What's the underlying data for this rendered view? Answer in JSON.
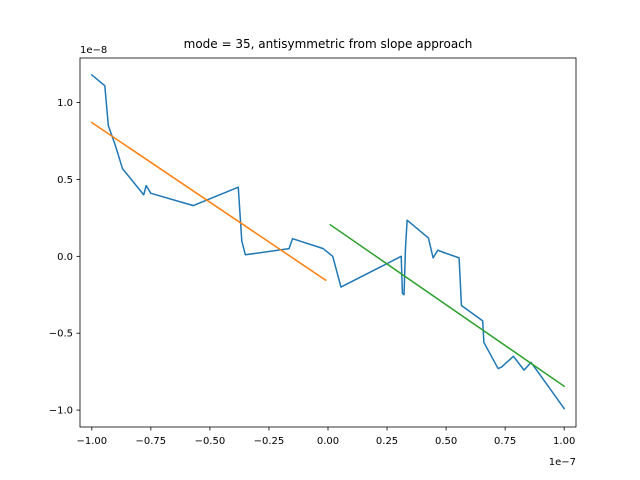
{
  "chart_data": {
    "type": "line",
    "title": "mode = 35, antisymmetric from slope approach",
    "x_offset_label": "1e−7",
    "y_offset_label": "1e−8",
    "xlim": [
      -1.05,
      1.05
    ],
    "ylim": [
      -1.11,
      1.29
    ],
    "x_ticks": [
      -1.0,
      -0.75,
      -0.5,
      -0.25,
      0.0,
      0.25,
      0.5,
      0.75,
      1.0
    ],
    "x_tick_labels": [
      "−1.00",
      "−0.75",
      "−0.50",
      "−0.25",
      "0.00",
      "0.25",
      "0.50",
      "0.75",
      "1.00"
    ],
    "y_ticks": [
      -1.0,
      -0.5,
      0.0,
      0.5,
      1.0
    ],
    "y_tick_labels": [
      "−1.0",
      "−0.5",
      "0.0",
      "0.5",
      "1.0"
    ],
    "grid": false,
    "series": [
      {
        "color": "#1f77b4",
        "x": [
          -1.0,
          -0.945,
          -0.93,
          -0.9,
          -0.87,
          -0.78,
          -0.77,
          -0.75,
          -0.57,
          -0.38,
          -0.365,
          -0.35,
          -0.165,
          -0.15,
          -0.02,
          0.02,
          0.055,
          0.31,
          0.315,
          0.322,
          0.328,
          0.335,
          0.425,
          0.445,
          0.465,
          0.49,
          0.555,
          0.565,
          0.655,
          0.66,
          0.72,
          0.735,
          0.785,
          0.83,
          0.86,
          1.0
        ],
        "y": [
          1.18,
          1.11,
          0.85,
          0.72,
          0.57,
          0.4,
          0.46,
          0.41,
          0.33,
          0.45,
          0.1,
          0.01,
          0.05,
          0.115,
          0.05,
          0.0,
          -0.2,
          0.0,
          -0.24,
          -0.25,
          0.05,
          0.235,
          0.12,
          -0.01,
          0.04,
          0.025,
          -0.01,
          -0.32,
          -0.42,
          -0.56,
          -0.73,
          -0.72,
          -0.65,
          -0.74,
          -0.69,
          -0.99
        ]
      },
      {
        "color": "#ff7f0e",
        "x": [
          -1.0,
          -0.01
        ],
        "y": [
          0.87,
          -0.155
        ]
      },
      {
        "color": "#2ca02c",
        "x": [
          0.01,
          1.0
        ],
        "y": [
          0.205,
          -0.845
        ]
      }
    ]
  }
}
